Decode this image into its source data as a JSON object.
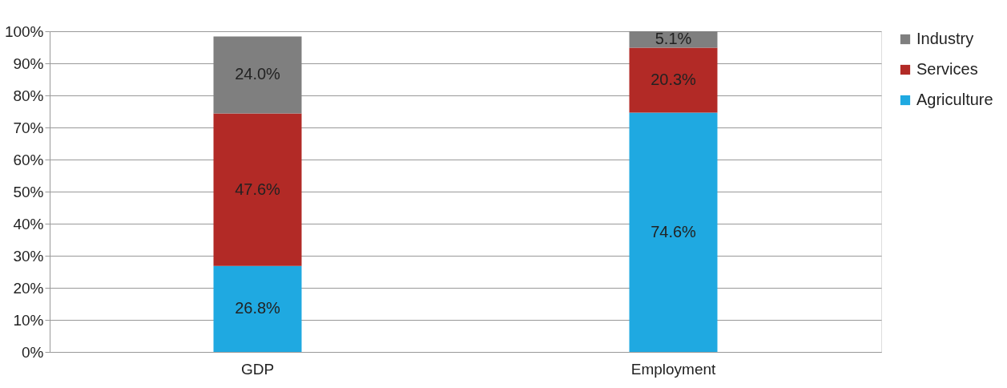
{
  "chart_data": {
    "type": "bar",
    "stacked": true,
    "categories": [
      "GDP",
      "Employment"
    ],
    "series": [
      {
        "name": "Agriculture",
        "color": "#1fa9e1",
        "values": [
          26.8,
          74.6
        ],
        "value_labels": [
          "26.8%",
          "74.6%"
        ]
      },
      {
        "name": "Services",
        "color": "#b22a26",
        "values": [
          47.6,
          20.3
        ],
        "value_labels": [
          "47.6%",
          "20.3%"
        ]
      },
      {
        "name": "Industry",
        "color": "#7f7f7f",
        "values": [
          24.0,
          5.1
        ],
        "value_labels": [
          "24.0%",
          "5.1%"
        ]
      }
    ],
    "ylim": [
      0,
      100
    ],
    "yticks": [
      {
        "value": 0,
        "label": "0%"
      },
      {
        "value": 10,
        "label": "10%"
      },
      {
        "value": 20,
        "label": "20%"
      },
      {
        "value": 30,
        "label": "30%"
      },
      {
        "value": 40,
        "label": "40%"
      },
      {
        "value": 50,
        "label": "50%"
      },
      {
        "value": 60,
        "label": "60%"
      },
      {
        "value": 70,
        "label": "70%"
      },
      {
        "value": 80,
        "label": "80%"
      },
      {
        "value": 90,
        "label": "90%"
      },
      {
        "value": 100,
        "label": "100%"
      }
    ],
    "grid": "y",
    "legend": "right"
  }
}
